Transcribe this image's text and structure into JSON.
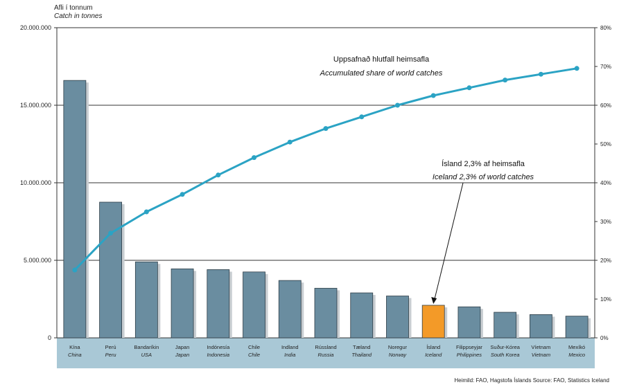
{
  "chart_data": {
    "type": "bar",
    "y_title_is": "Afli í tonnum",
    "y_title_en": "Catch in tonnes",
    "ylim": [
      0,
      20000000
    ],
    "yticks": [
      "0",
      "5.000.000",
      "10.000.000",
      "15.000.000",
      "20.000.000"
    ],
    "ytick_values": [
      0,
      5000000,
      10000000,
      15000000,
      20000000
    ],
    "y2lim": [
      0,
      80
    ],
    "y2ticks": [
      "0%",
      "10%",
      "20%",
      "30%",
      "40%",
      "50%",
      "60%",
      "70%",
      "80%"
    ],
    "y2tick_values": [
      0,
      10,
      20,
      30,
      40,
      50,
      60,
      70,
      80
    ],
    "gridlines": true,
    "categories": [
      {
        "is": "Kína",
        "en": "China"
      },
      {
        "is": "Perú",
        "en": "Peru"
      },
      {
        "is": "Bandaríkin",
        "en": "USA"
      },
      {
        "is": "Japan",
        "en": "Japan"
      },
      {
        "is": "Indónesía",
        "en": "Indonesia"
      },
      {
        "is": "Chile",
        "en": "Chile"
      },
      {
        "is": "Indland",
        "en": "India"
      },
      {
        "is": "Rússland",
        "en": "Russia"
      },
      {
        "is": "Tæland",
        "en": "Thailand"
      },
      {
        "is": "Noregur",
        "en": "Norway"
      },
      {
        "is": "Ísland",
        "en": "Iceland"
      },
      {
        "is": "Filippseyjar",
        "en": "Philippines"
      },
      {
        "is": "Suður-Kórea",
        "en": "South Korea"
      },
      {
        "is": "Víetnam",
        "en": "Vietnam"
      },
      {
        "is": "Mexíkó",
        "en": "Mexico"
      }
    ],
    "series": [
      {
        "values": [
          16600000,
          8750000,
          4900000,
          4450000,
          4400000,
          4250000,
          3700000,
          3200000,
          2900000,
          2700000,
          2100000,
          2000000,
          1650000,
          1500000,
          1400000
        ],
        "color": "#6a8da0"
      },
      {
        "name_is": "Uppsafnað hlutfall heimsafla",
        "name_en": "Accumulated share of world catches",
        "axis": "right",
        "type": "line",
        "values": [
          17.5,
          27,
          32.5,
          37,
          42,
          46.5,
          50.5,
          54,
          57,
          60,
          62.5,
          64.5,
          66.5,
          68,
          69.5
        ],
        "color": "#2ba3c4"
      }
    ],
    "highlight": {
      "category_index": 10,
      "color": "#f39a28"
    },
    "annotation_is": "Ísland 2,3% af heimsafla",
    "annotation_en": "Iceland 2,3% of world catches",
    "source_text": "Heimild: FAO, Hagstofa Íslands   Source: FAO, Statistics Iceland"
  }
}
